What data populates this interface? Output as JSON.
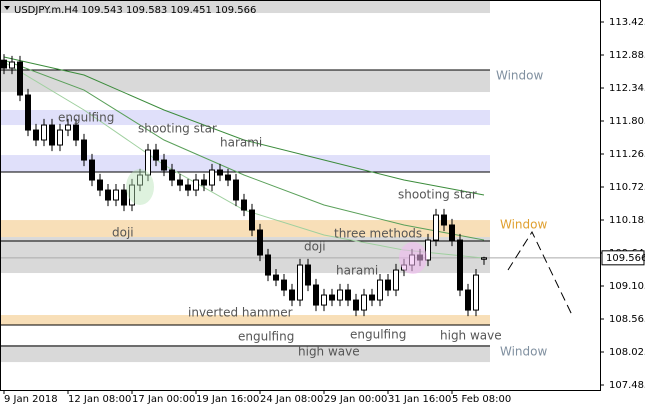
{
  "chart_data": {
    "type": "candlestick",
    "header": {
      "symbol": "USDJPY.m.H4",
      "open": 109.543,
      "high": 109.583,
      "low": 109.451,
      "close": 109.566
    },
    "current_price": 109.566,
    "xlim": [
      0,
      60
    ],
    "xticks": [
      {
        "value": 0,
        "label": "9 Jan 2018"
      },
      {
        "value": 8,
        "label": "12 Jan 08:00"
      },
      {
        "value": 16,
        "label": "17 Jan 00:00"
      },
      {
        "value": 24,
        "label": "19 Jan 16:00"
      },
      {
        "value": 32,
        "label": "24 Jan 08:00"
      },
      {
        "value": 40,
        "label": "29 Jan 00:00"
      },
      {
        "value": 48,
        "label": "31 Jan 16:00"
      },
      {
        "value": 56,
        "label": "5 Feb 08:00"
      }
    ],
    "ylim": [
      107.403,
      113.785
    ],
    "yticks": [
      113.425,
      112.885,
      112.345,
      111.805,
      111.265,
      110.725,
      110.185,
      109.645,
      109.105,
      108.565,
      108.025,
      107.485
    ],
    "open": [
      112.8,
      112.672,
      112.77,
      112.23,
      111.657,
      111.494,
      111.739,
      111.412,
      111.657,
      111.739,
      111.494,
      111.166,
      110.839,
      110.675,
      110.512,
      110.675,
      110.43,
      110.757,
      110.921,
      111.33,
      111.166,
      111.003,
      110.839,
      110.757,
      110.675,
      110.839,
      110.757,
      111.003,
      110.921,
      110.839,
      110.512,
      110.348,
      110.021,
      109.612,
      109.284,
      109.202,
      109.039,
      108.875,
      109.448,
      109.121,
      108.793,
      108.957,
      108.875,
      109.039,
      108.875,
      108.711,
      108.957,
      108.875,
      109.202,
      109.039,
      109.366,
      109.448,
      109.612,
      109.53,
      109.857,
      110.266,
      110.103,
      109.857,
      109.039,
      108.711,
      109.543
    ],
    "high": [
      112.9,
      112.87,
      112.87,
      112.33,
      111.757,
      111.839,
      111.839,
      111.757,
      111.839,
      111.839,
      111.594,
      111.266,
      110.939,
      110.775,
      110.775,
      110.775,
      110.857,
      111.021,
      111.43,
      111.43,
      111.266,
      111.103,
      110.939,
      110.857,
      110.939,
      110.939,
      111.103,
      111.103,
      111.021,
      110.939,
      110.612,
      110.448,
      110.121,
      109.712,
      109.384,
      109.302,
      109.139,
      109.548,
      109.548,
      109.221,
      109.057,
      109.057,
      109.139,
      109.139,
      108.975,
      109.057,
      109.057,
      109.302,
      109.302,
      109.466,
      109.548,
      109.712,
      109.712,
      109.957,
      110.366,
      110.366,
      110.203,
      109.957,
      109.139,
      109.384,
      109.583
    ],
    "low": [
      112.572,
      112.572,
      112.13,
      111.557,
      111.394,
      111.394,
      111.312,
      111.312,
      111.557,
      111.394,
      111.066,
      110.739,
      110.575,
      110.412,
      110.412,
      110.33,
      110.33,
      110.657,
      110.821,
      111.066,
      110.903,
      110.739,
      110.657,
      110.575,
      110.575,
      110.657,
      110.657,
      110.821,
      110.739,
      110.412,
      110.248,
      109.921,
      109.512,
      109.184,
      109.102,
      108.939,
      108.775,
      108.775,
      109.021,
      108.693,
      108.693,
      108.775,
      108.775,
      108.775,
      108.611,
      108.611,
      108.775,
      108.775,
      108.939,
      108.939,
      109.266,
      109.348,
      109.43,
      109.43,
      109.757,
      110.003,
      109.757,
      108.939,
      108.611,
      108.611,
      109.451
    ],
    "close": [
      112.672,
      112.77,
      112.23,
      111.657,
      111.494,
      111.739,
      111.412,
      111.657,
      111.739,
      111.494,
      111.166,
      110.839,
      110.675,
      110.512,
      110.675,
      110.43,
      110.757,
      110.921,
      111.33,
      111.166,
      111.003,
      110.839,
      110.757,
      110.675,
      110.839,
      110.757,
      111.003,
      110.921,
      110.839,
      110.512,
      110.348,
      110.021,
      109.612,
      109.284,
      109.202,
      109.039,
      108.875,
      109.448,
      109.121,
      108.793,
      108.957,
      108.875,
      109.039,
      108.875,
      108.711,
      108.957,
      108.875,
      109.202,
      109.039,
      109.366,
      109.448,
      109.612,
      109.53,
      109.857,
      110.266,
      110.103,
      109.857,
      109.039,
      108.711,
      109.284,
      109.566
    ],
    "zones": [
      {
        "low": 113.572,
        "high": 113.785,
        "color": "#d9d9d9"
      },
      {
        "low": 112.279,
        "high": 112.639,
        "color": "#d9d9d9",
        "line": 112.639
      },
      {
        "low": 111.739,
        "high": 111.985,
        "color": "#e0e0fa"
      },
      {
        "low": 110.97,
        "high": 111.248,
        "color": "#e0e0fa",
        "line": 110.97
      },
      {
        "low": 109.906,
        "high": 110.184,
        "color": "#f8dfb8"
      },
      {
        "low": 109.317,
        "high": 109.906,
        "color": "#d9d9d9",
        "line": 109.841
      },
      {
        "low": 108.466,
        "high": 108.63,
        "color": "#f8dfb8",
        "line": 108.466
      },
      {
        "low": 107.86,
        "high": 108.139,
        "color": "#d9d9d9",
        "line": 108.123
      }
    ],
    "moving_averages": [
      {
        "color": "#3c8c3c",
        "x": [
          0,
          10,
          20,
          30,
          40,
          50,
          60
        ],
        "values": [
          112.852,
          112.558,
          111.985,
          111.494,
          111.166,
          110.839,
          110.594
        ]
      },
      {
        "color": "#5aa05a",
        "x": [
          0,
          10,
          20,
          30,
          40,
          50,
          60
        ],
        "values": [
          112.803,
          112.312,
          111.494,
          110.921,
          110.43,
          110.103,
          109.857
        ]
      },
      {
        "color": "#9fd09f",
        "x": [
          0,
          10,
          20,
          30,
          40,
          50,
          60
        ],
        "values": [
          112.77,
          111.985,
          111.085,
          110.348,
          109.939,
          109.693,
          109.562
        ]
      }
    ],
    "annotations": [
      "Window",
      "engulfing",
      "shooting star",
      "harami",
      "doji",
      "doji",
      "three methods",
      "shooting star",
      "Window",
      "harami",
      "inverted hammer",
      "engulfing",
      "engulfing",
      "high wave",
      "high wave",
      "Window"
    ]
  }
}
